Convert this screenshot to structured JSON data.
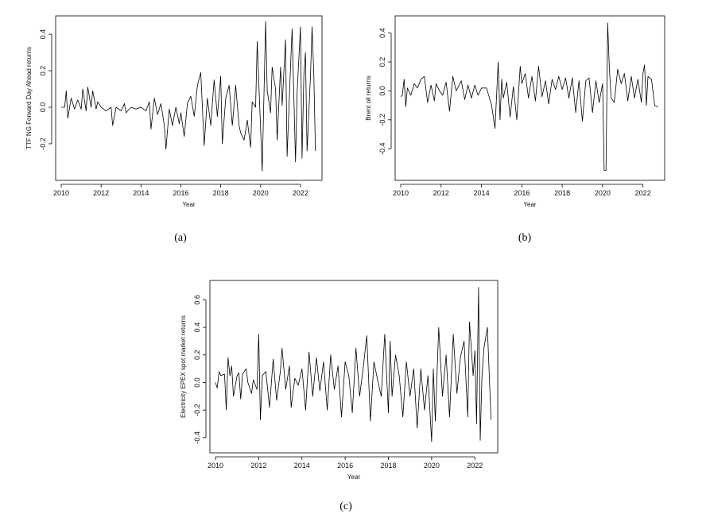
{
  "chart_data": [
    {
      "panel": "(a)",
      "type": "line",
      "xlabel": "Year",
      "ylabel": "TTF NG Forward Day Ahead returns",
      "xlim": [
        2010,
        2022.8
      ],
      "ylim": [
        -0.37,
        0.47
      ],
      "xticks": [
        2010,
        2012,
        2014,
        2016,
        2018,
        2020,
        2022
      ],
      "yticks": [
        -0.2,
        0.0,
        0.2,
        0.4
      ],
      "ytick_labels": [
        "-0.2",
        "0.0",
        "0.2",
        "0.4"
      ],
      "series": [
        {
          "x": [
            2010.0,
            2010.17,
            2010.25,
            2010.33,
            2010.5,
            2010.67,
            2010.83,
            2011.0,
            2011.08,
            2011.25,
            2011.33,
            2011.5,
            2011.58,
            2011.75,
            2011.83,
            2012.0,
            2012.25,
            2012.5,
            2012.58,
            2012.75,
            2013.0,
            2013.17,
            2013.25,
            2013.5,
            2013.75,
            2014.0,
            2014.25,
            2014.42,
            2014.5,
            2014.67,
            2014.83,
            2015.0,
            2015.17,
            2015.25,
            2015.42,
            2015.58,
            2015.75,
            2015.92,
            2016.0,
            2016.17,
            2016.33,
            2016.5,
            2016.67,
            2016.83,
            2017.0,
            2017.17,
            2017.33,
            2017.5,
            2017.67,
            2017.83,
            2018.0,
            2018.08,
            2018.25,
            2018.42,
            2018.58,
            2018.75,
            2018.92,
            2019.0,
            2019.17,
            2019.33,
            2019.5,
            2019.58,
            2019.75,
            2019.83,
            2020.0,
            2020.08,
            2020.25,
            2020.33,
            2020.5,
            2020.58,
            2020.75,
            2020.83,
            2021.0,
            2021.08,
            2021.25,
            2021.33,
            2021.5,
            2021.58,
            2021.75,
            2021.83,
            2022.0,
            2022.08,
            2022.17,
            2022.25,
            2022.33,
            2022.5,
            2022.58,
            2022.67,
            2022.75
          ],
          "y": [
            0.0,
            0.0,
            0.09,
            -0.06,
            0.05,
            -0.01,
            0.04,
            -0.01,
            0.1,
            -0.02,
            0.11,
            0.0,
            0.09,
            -0.01,
            0.03,
            0.0,
            -0.02,
            0.0,
            -0.1,
            0.0,
            -0.02,
            0.02,
            -0.03,
            0.0,
            -0.01,
            0.0,
            -0.02,
            0.03,
            -0.12,
            0.05,
            -0.04,
            0.02,
            -0.1,
            -0.23,
            -0.01,
            -0.1,
            0.0,
            -0.09,
            -0.03,
            -0.16,
            0.02,
            0.06,
            -0.05,
            0.12,
            0.19,
            -0.21,
            0.05,
            -0.1,
            0.15,
            -0.05,
            0.17,
            -0.2,
            0.05,
            0.12,
            -0.1,
            0.12,
            -0.1,
            -0.14,
            -0.18,
            -0.07,
            -0.22,
            0.03,
            0.0,
            0.36,
            -0.12,
            -0.35,
            0.47,
            0.09,
            -0.03,
            0.22,
            0.1,
            -0.18,
            0.22,
            0.01,
            0.37,
            -0.27,
            0.22,
            0.43,
            -0.3,
            0.08,
            0.44,
            -0.28,
            0.18,
            0.3,
            -0.24,
            0.17,
            0.44,
            0.18,
            -0.24
          ]
        }
      ]
    },
    {
      "panel": "(b)",
      "type": "line",
      "xlabel": "Year",
      "ylabel": "Brent oil returns",
      "xlim": [
        2010,
        2022.8
      ],
      "ylim": [
        -0.58,
        0.48
      ],
      "xticks": [
        2010,
        2012,
        2014,
        2016,
        2018,
        2020,
        2022
      ],
      "yticks": [
        -0.4,
        -0.2,
        0.0,
        0.2,
        0.4
      ],
      "ytick_labels": [
        "-0.4",
        "-0.2",
        "0.0",
        "0.2",
        "0.4"
      ],
      "series": [
        {
          "x": [
            2010.0,
            2010.08,
            2010.17,
            2010.25,
            2010.33,
            2010.5,
            2010.67,
            2010.83,
            2011.0,
            2011.17,
            2011.33,
            2011.5,
            2011.67,
            2011.75,
            2011.92,
            2012.08,
            2012.25,
            2012.42,
            2012.58,
            2012.75,
            2013.0,
            2013.17,
            2013.33,
            2013.5,
            2013.67,
            2013.83,
            2014.0,
            2014.25,
            2014.5,
            2014.67,
            2014.83,
            2014.92,
            2015.0,
            2015.08,
            2015.25,
            2015.42,
            2015.58,
            2015.75,
            2015.92,
            2016.0,
            2016.17,
            2016.33,
            2016.5,
            2016.67,
            2016.83,
            2017.0,
            2017.17,
            2017.33,
            2017.5,
            2017.67,
            2017.83,
            2018.0,
            2018.17,
            2018.33,
            2018.5,
            2018.67,
            2018.83,
            2019.0,
            2019.17,
            2019.33,
            2019.5,
            2019.67,
            2019.83,
            2020.0,
            2020.08,
            2020.17,
            2020.25,
            2020.33,
            2020.42,
            2020.58,
            2020.75,
            2020.92,
            2021.08,
            2021.25,
            2021.42,
            2021.58,
            2021.75,
            2021.92,
            2022.0,
            2022.08,
            2022.17,
            2022.25,
            2022.42,
            2022.58,
            2022.75
          ],
          "y": [
            -0.04,
            -0.03,
            0.08,
            -0.11,
            0.02,
            -0.03,
            0.05,
            0.02,
            0.08,
            0.1,
            -0.08,
            0.04,
            -0.07,
            0.05,
            0.0,
            -0.03,
            0.06,
            -0.14,
            0.1,
            0.0,
            0.07,
            -0.06,
            0.04,
            -0.05,
            0.04,
            -0.03,
            0.02,
            0.02,
            -0.1,
            -0.26,
            0.2,
            -0.2,
            0.08,
            -0.05,
            0.06,
            -0.18,
            0.03,
            -0.2,
            0.17,
            0.05,
            0.12,
            -0.05,
            0.1,
            -0.07,
            0.17,
            -0.04,
            0.07,
            -0.09,
            0.08,
            0.01,
            0.1,
            0.01,
            0.09,
            -0.05,
            0.09,
            -0.15,
            0.07,
            -0.21,
            0.07,
            0.09,
            -0.15,
            0.07,
            -0.08,
            0.05,
            -0.55,
            -0.55,
            0.47,
            0.17,
            -0.05,
            -0.08,
            0.15,
            0.05,
            0.12,
            -0.07,
            0.1,
            -0.05,
            0.08,
            -0.08,
            0.12,
            0.18,
            -0.1,
            0.1,
            0.08,
            -0.1,
            -0.11
          ]
        }
      ]
    },
    {
      "panel": "(c)",
      "type": "line",
      "xlabel": "Year",
      "ylabel": "Electricity EPEX spot market returns",
      "xlim": [
        2010,
        2022.8
      ],
      "ylim": [
        -0.47,
        0.7
      ],
      "xticks": [
        2010,
        2012,
        2014,
        2016,
        2018,
        2020,
        2022
      ],
      "yticks": [
        -0.4,
        -0.2,
        0.0,
        0.2,
        0.4,
        0.6
      ],
      "ytick_labels": [
        "-0.4",
        "-0.2",
        "0.0",
        "0.2",
        "0.4",
        "0.6"
      ],
      "series": [
        {
          "x": [
            2010.0,
            2010.08,
            2010.17,
            2010.25,
            2010.42,
            2010.5,
            2010.58,
            2010.67,
            2010.75,
            2010.83,
            2011.0,
            2011.08,
            2011.17,
            2011.25,
            2011.42,
            2011.5,
            2011.67,
            2011.75,
            2011.92,
            2012.0,
            2012.08,
            2012.17,
            2012.33,
            2012.5,
            2012.67,
            2012.83,
            2013.0,
            2013.08,
            2013.25,
            2013.42,
            2013.5,
            2013.67,
            2013.83,
            2014.0,
            2014.17,
            2014.33,
            2014.5,
            2014.67,
            2014.83,
            2015.0,
            2015.17,
            2015.33,
            2015.5,
            2015.67,
            2015.83,
            2016.0,
            2016.17,
            2016.33,
            2016.5,
            2016.67,
            2016.83,
            2017.0,
            2017.17,
            2017.33,
            2017.5,
            2017.67,
            2017.83,
            2018.0,
            2018.08,
            2018.17,
            2018.33,
            2018.5,
            2018.67,
            2018.83,
            2019.0,
            2019.17,
            2019.33,
            2019.5,
            2019.67,
            2019.83,
            2020.0,
            2020.08,
            2020.17,
            2020.33,
            2020.5,
            2020.67,
            2020.83,
            2021.0,
            2021.17,
            2021.33,
            2021.5,
            2021.67,
            2021.75,
            2021.92,
            2022.0,
            2022.08,
            2022.17,
            2022.25,
            2022.33,
            2022.42,
            2022.58,
            2022.75
          ],
          "y": [
            0.0,
            -0.04,
            0.08,
            0.05,
            0.06,
            -0.2,
            0.18,
            0.05,
            0.12,
            -0.1,
            0.05,
            0.07,
            -0.12,
            0.06,
            0.1,
            0.0,
            -0.08,
            0.02,
            -0.05,
            0.35,
            -0.27,
            0.05,
            0.08,
            -0.18,
            0.17,
            -0.13,
            0.08,
            0.25,
            -0.05,
            0.12,
            -0.18,
            0.03,
            -0.02,
            0.1,
            -0.2,
            0.22,
            -0.1,
            0.18,
            -0.06,
            0.15,
            -0.2,
            0.2,
            -0.05,
            0.12,
            -0.25,
            0.15,
            0.05,
            -0.22,
            0.25,
            -0.1,
            0.1,
            0.34,
            -0.28,
            0.15,
            0.02,
            -0.1,
            0.35,
            -0.22,
            0.3,
            -0.1,
            0.2,
            0.05,
            -0.25,
            0.15,
            -0.1,
            0.1,
            -0.33,
            0.1,
            -0.2,
            0.05,
            -0.43,
            0.1,
            -0.28,
            0.4,
            -0.1,
            0.2,
            -0.25,
            0.35,
            -0.08,
            0.18,
            0.3,
            -0.25,
            0.44,
            0.05,
            0.23,
            -0.3,
            0.69,
            -0.42,
            0.05,
            0.25,
            0.4,
            -0.27
          ]
        }
      ]
    }
  ],
  "captions": [
    "(a)",
    "(b)",
    "(c)"
  ]
}
